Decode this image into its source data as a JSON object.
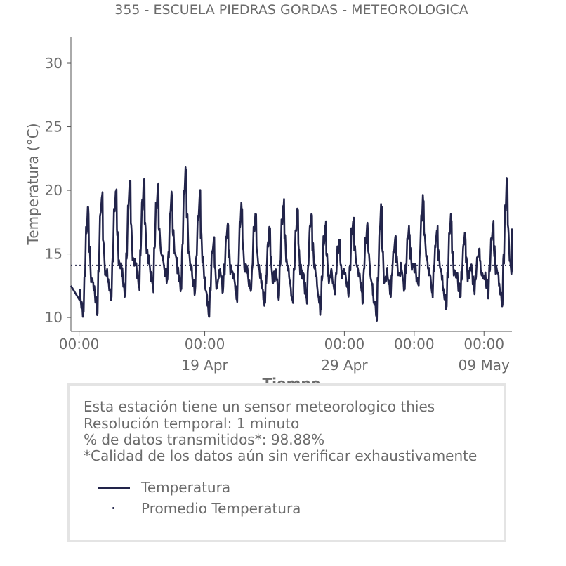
{
  "colors": {
    "series": "#22244a",
    "text": "#6b6b6b",
    "axis": "#555555",
    "box_border": "#e4e4e4"
  },
  "chart_data": {
    "type": "line",
    "title": "355 - ESCUELA PIEDRAS GORDAS - METEOROLOGICA",
    "xlabel": "Tiempo",
    "ylabel": "Temperatura (°C)",
    "ylim": [
      8.9,
      32.1
    ],
    "xlim": [
      "2023-04-09 10:00",
      "2023-05-11 00:00"
    ],
    "yticks": [
      10,
      15,
      20,
      25,
      30
    ],
    "xticks": [
      {
        "at": "2023-04-10 00:00",
        "label": "00:00",
        "sublabel": ""
      },
      {
        "at": "2023-04-19 00:00",
        "label": "00:00",
        "sublabel": "19 Apr"
      },
      {
        "at": "2023-04-29 00:00",
        "label": "00:00",
        "sublabel": "29 Apr"
      },
      {
        "at": "2023-05-04 00:00",
        "label": "00:00",
        "sublabel": ""
      },
      {
        "at": "2023-05-09 00:00",
        "label": "00:00",
        "sublabel": "09 May"
      }
    ],
    "grid": false,
    "series": [
      {
        "name": "Temperatura",
        "style": "solid",
        "daily_min_max": [
          {
            "date": "2023-04-10",
            "min": 10.2,
            "max": 18.5
          },
          {
            "date": "2023-04-11",
            "min": 10.5,
            "max": 19.8
          },
          {
            "date": "2023-04-12",
            "min": 11.5,
            "max": 19.9
          },
          {
            "date": "2023-04-13",
            "min": 12.0,
            "max": 20.4
          },
          {
            "date": "2023-04-14",
            "min": 12.5,
            "max": 20.5
          },
          {
            "date": "2023-04-15",
            "min": 12.4,
            "max": 20.2
          },
          {
            "date": "2023-04-16",
            "min": 12.6,
            "max": 19.5
          },
          {
            "date": "2023-04-17",
            "min": 12.3,
            "max": 21.4
          },
          {
            "date": "2023-04-18",
            "min": 12.0,
            "max": 19.6
          },
          {
            "date": "2023-04-19",
            "min": 10.5,
            "max": 15.9
          },
          {
            "date": "2023-04-20",
            "min": 12.0,
            "max": 17.0
          },
          {
            "date": "2023-04-21",
            "min": 11.5,
            "max": 18.7
          },
          {
            "date": "2023-04-22",
            "min": 12.0,
            "max": 17.9
          },
          {
            "date": "2023-04-23",
            "min": 11.0,
            "max": 16.8
          },
          {
            "date": "2023-04-24",
            "min": 11.8,
            "max": 19.2
          },
          {
            "date": "2023-04-25",
            "min": 11.2,
            "max": 18.7
          },
          {
            "date": "2023-04-26",
            "min": 11.5,
            "max": 18.2
          },
          {
            "date": "2023-04-27",
            "min": 10.5,
            "max": 17.5
          },
          {
            "date": "2023-04-28",
            "min": 12.0,
            "max": 16.0
          },
          {
            "date": "2023-04-29",
            "min": 12.0,
            "max": 17.9
          },
          {
            "date": "2023-04-30",
            "min": 11.5,
            "max": 17.2
          },
          {
            "date": "2023-05-01",
            "min": 10.0,
            "max": 18.5
          },
          {
            "date": "2023-05-02",
            "min": 12.0,
            "max": 16.0
          },
          {
            "date": "2023-05-03",
            "min": 12.4,
            "max": 16.8
          },
          {
            "date": "2023-05-04",
            "min": 12.4,
            "max": 19.3
          },
          {
            "date": "2023-05-05",
            "min": 12.0,
            "max": 16.9
          },
          {
            "date": "2023-05-06",
            "min": 11.0,
            "max": 17.8
          },
          {
            "date": "2023-05-07",
            "min": 11.5,
            "max": 16.5
          },
          {
            "date": "2023-05-08",
            "min": 12.2,
            "max": 15.5
          },
          {
            "date": "2023-05-09",
            "min": 11.8,
            "max": 17.5
          },
          {
            "date": "2023-05-10",
            "min": 11.3,
            "max": 20.6
          }
        ]
      },
      {
        "name": "Promedio Temperatura",
        "style": "dotted",
        "value": 14.1
      }
    ]
  },
  "info": {
    "line1": "Esta estación tiene un sensor meteorologico thies",
    "line2": "Resolución temporal: 1 minuto",
    "line3": "% de datos transmitidos*: 98.88%",
    "line4": "*Calidad de los datos aún sin verificar exhaustivamente"
  },
  "legend": {
    "item1": "Temperatura",
    "item2": "Promedio Temperatura"
  }
}
